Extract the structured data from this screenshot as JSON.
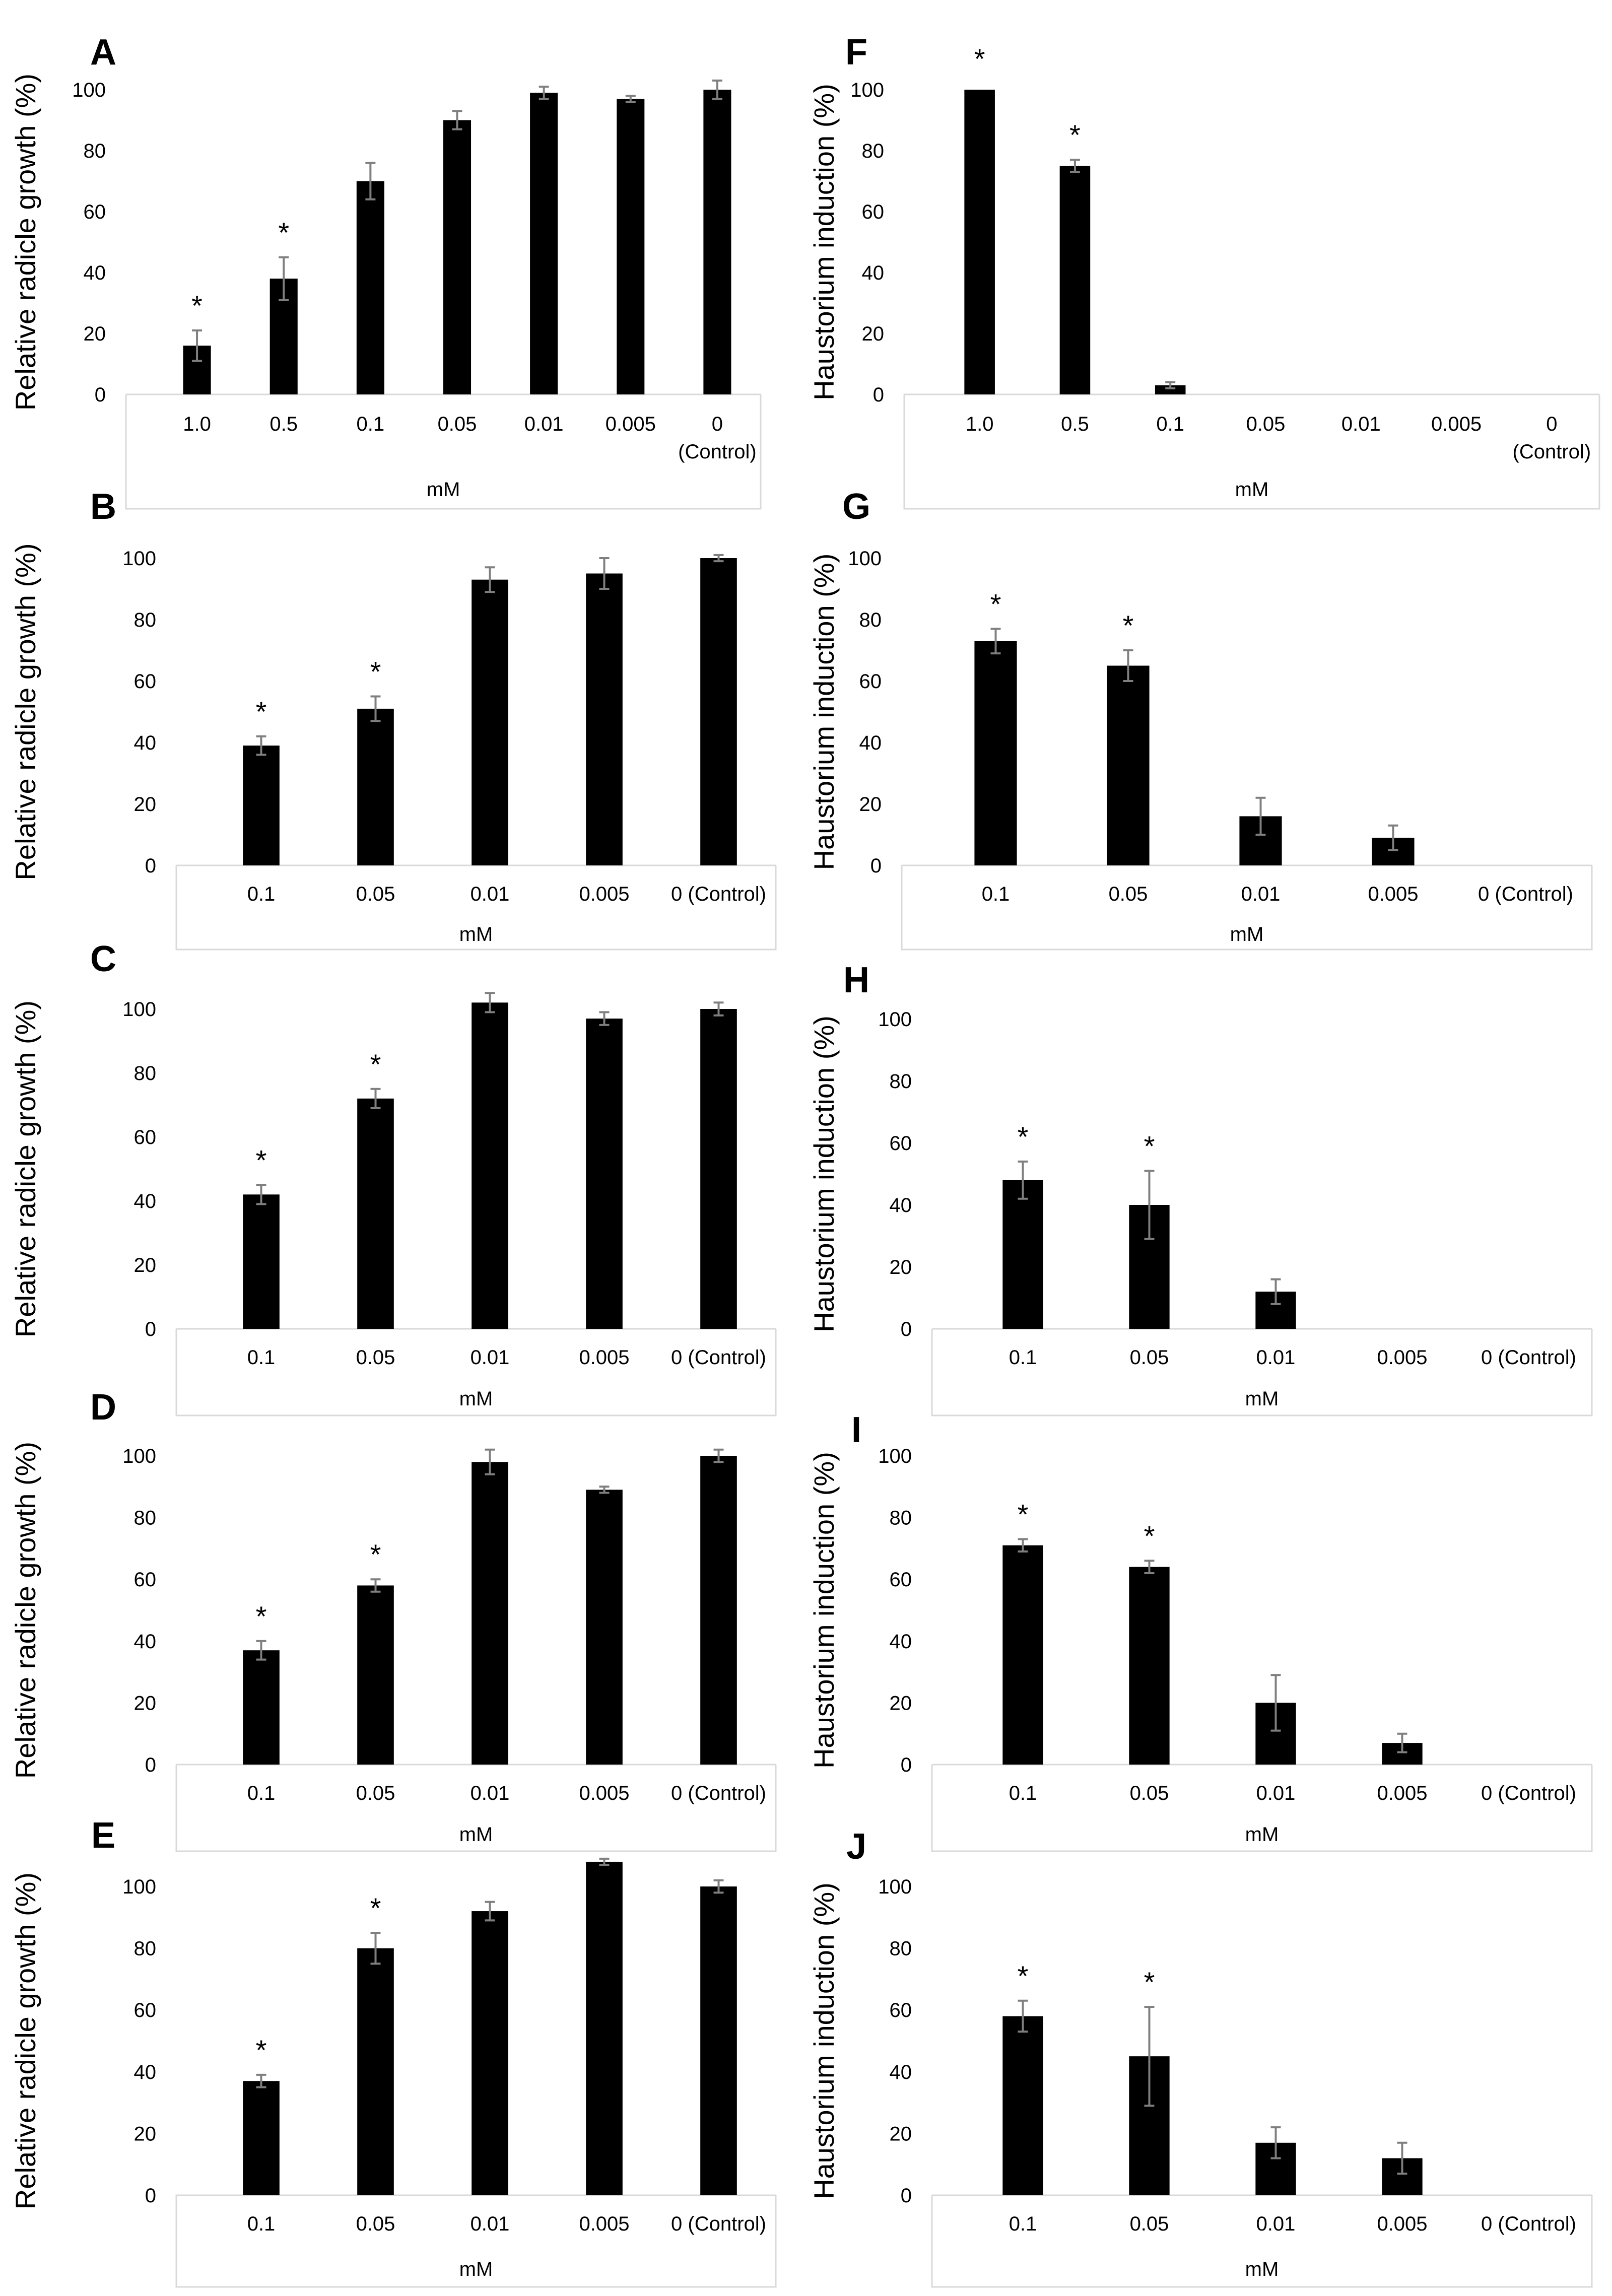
{
  "colors": {
    "bar": "#000000",
    "error": "#7f7f7f",
    "axis": "#d9d9d9",
    "text": "#000000"
  },
  "chart_data": [
    {
      "panel": "A",
      "type": "bar",
      "ylabel": "Relative radicle growth (%)",
      "xlabel": "mM",
      "categories": [
        "1.0",
        "0.5",
        "0.1",
        "0.05",
        "0.01",
        "0.005",
        "0\n(Control)"
      ],
      "values": [
        16,
        38,
        70,
        90,
        99,
        97,
        100
      ],
      "errors": [
        5,
        7,
        6,
        3,
        2,
        1,
        3
      ],
      "significant": [
        true,
        true,
        false,
        false,
        false,
        false,
        false
      ],
      "yticks": [
        0,
        20,
        40,
        60,
        80,
        100
      ],
      "ylim": [
        0,
        100
      ]
    },
    {
      "panel": "B",
      "type": "bar",
      "ylabel": "Relative radicle growth (%)",
      "xlabel": "mM",
      "categories": [
        "0.1",
        "0.05",
        "0.01",
        "0.005",
        "0 (Control)"
      ],
      "values": [
        39,
        51,
        93,
        95,
        100
      ],
      "errors": [
        3,
        4,
        4,
        5,
        1
      ],
      "significant": [
        true,
        true,
        false,
        false,
        false
      ],
      "yticks": [
        0,
        20,
        40,
        60,
        80,
        100
      ],
      "ylim": [
        0,
        100
      ]
    },
    {
      "panel": "C",
      "type": "bar",
      "ylabel": "Relative radicle growth (%)",
      "xlabel": "mM",
      "categories": [
        "0.1",
        "0.05",
        "0.01",
        "0.005",
        "0 (Control)"
      ],
      "values": [
        42,
        72,
        102,
        97,
        100
      ],
      "errors": [
        3,
        3,
        3,
        2,
        2
      ],
      "significant": [
        true,
        true,
        false,
        false,
        false
      ],
      "yticks": [
        0,
        20,
        40,
        60,
        80,
        100
      ],
      "ylim": [
        0,
        100
      ]
    },
    {
      "panel": "D",
      "type": "bar",
      "ylabel": "Relative radicle growth (%)",
      "xlabel": "mM",
      "categories": [
        "0.1",
        "0.05",
        "0.01",
        "0.005",
        "0 (Control)"
      ],
      "values": [
        37,
        58,
        98,
        89,
        100
      ],
      "errors": [
        3,
        2,
        4,
        1,
        2
      ],
      "significant": [
        true,
        true,
        false,
        false,
        false
      ],
      "yticks": [
        0,
        20,
        40,
        60,
        80,
        100
      ],
      "ylim": [
        0,
        100
      ]
    },
    {
      "panel": "E",
      "type": "bar",
      "ylabel": "Relative radicle growth (%)",
      "xlabel": "mM",
      "categories": [
        "0.1",
        "0.05",
        "0.01",
        "0.005",
        "0 (Control)"
      ],
      "values": [
        37,
        80,
        92,
        108,
        100
      ],
      "errors": [
        2,
        5,
        3,
        1,
        2
      ],
      "significant": [
        true,
        true,
        false,
        false,
        false
      ],
      "yticks": [
        0,
        20,
        40,
        60,
        80,
        100
      ],
      "ylim": [
        0,
        100
      ]
    },
    {
      "panel": "F",
      "type": "bar",
      "ylabel": "Haustorium induction (%)",
      "xlabel": "mM",
      "categories": [
        "1.0",
        "0.5",
        "0.1",
        "0.05",
        "0.01",
        "0.005",
        "0\n(Control)"
      ],
      "values": [
        100,
        75,
        3,
        0,
        0,
        0,
        0
      ],
      "errors": [
        0,
        2,
        1,
        0,
        0,
        0,
        0
      ],
      "significant": [
        true,
        true,
        false,
        false,
        false,
        false,
        false
      ],
      "yticks": [
        0,
        20,
        40,
        60,
        80,
        100
      ],
      "ylim": [
        0,
        100
      ]
    },
    {
      "panel": "G",
      "type": "bar",
      "ylabel": "Haustorium induction (%)",
      "xlabel": "mM",
      "categories": [
        "0.1",
        "0.05",
        "0.01",
        "0.005",
        "0 (Control)"
      ],
      "values": [
        73,
        65,
        16,
        9,
        0
      ],
      "errors": [
        4,
        5,
        6,
        4,
        0
      ],
      "significant": [
        true,
        true,
        false,
        false,
        false
      ],
      "yticks": [
        0,
        20,
        40,
        60,
        80,
        100
      ],
      "ylim": [
        0,
        100
      ]
    },
    {
      "panel": "H",
      "type": "bar",
      "ylabel": "Haustorium induction (%)",
      "xlabel": "mM",
      "categories": [
        "0.1",
        "0.05",
        "0.01",
        "0.005",
        "0 (Control)"
      ],
      "values": [
        48,
        40,
        12,
        0,
        0
      ],
      "errors": [
        6,
        11,
        4,
        0,
        0
      ],
      "significant": [
        true,
        true,
        false,
        false,
        false
      ],
      "yticks": [
        0,
        20,
        40,
        60,
        80,
        100
      ],
      "ylim": [
        0,
        100
      ]
    },
    {
      "panel": "I",
      "type": "bar",
      "ylabel": "Haustorium induction (%)",
      "xlabel": "mM",
      "categories": [
        "0.1",
        "0.05",
        "0.01",
        "0.005",
        "0 (Control)"
      ],
      "values": [
        71,
        64,
        20,
        7,
        0
      ],
      "errors": [
        2,
        2,
        9,
        3,
        0
      ],
      "significant": [
        true,
        true,
        false,
        false,
        false
      ],
      "yticks": [
        0,
        20,
        40,
        60,
        80,
        100
      ],
      "ylim": [
        0,
        100
      ]
    },
    {
      "panel": "J",
      "type": "bar",
      "ylabel": "Haustorium induction (%)",
      "xlabel": "mM",
      "categories": [
        "0.1",
        "0.05",
        "0.01",
        "0.005",
        "0 (Control)"
      ],
      "values": [
        58,
        45,
        17,
        12,
        0
      ],
      "errors": [
        5,
        16,
        5,
        5,
        0
      ],
      "significant": [
        true,
        true,
        false,
        false,
        false
      ],
      "yticks": [
        0,
        20,
        40,
        60,
        80,
        100
      ],
      "ylim": [
        0,
        100
      ]
    }
  ]
}
